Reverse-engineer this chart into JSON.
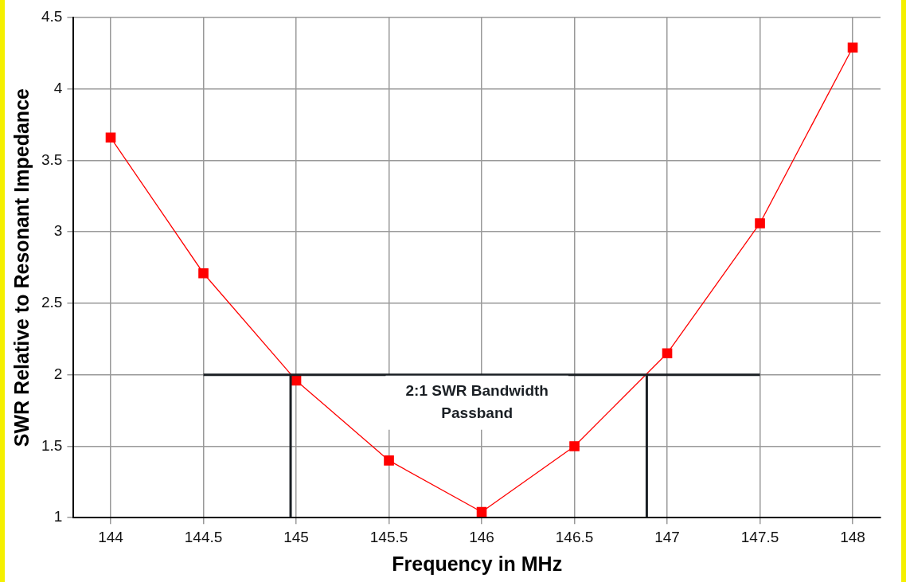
{
  "chart_data": {
    "type": "line",
    "xlabel": "Frequency in MHz",
    "ylabel": "SWR Relative to Resonant Impedance",
    "xlim": [
      143.8,
      148.15
    ],
    "xticks": [
      144,
      144.5,
      145,
      145.5,
      146,
      146.5,
      147,
      147.5,
      148
    ],
    "ylim": [
      1,
      4.5
    ],
    "yticks": [
      1,
      1.5,
      2,
      2.5,
      3,
      3.5,
      4,
      4.5
    ],
    "grid": true,
    "legend": false,
    "marker": "square",
    "line_style": "solid",
    "annotations": [
      "2:1 SWR Bandwidth\nPassband"
    ],
    "series": [
      {
        "color": "#ff0000",
        "x": [
          144,
          144.5,
          145,
          145.5,
          146,
          146.5,
          147,
          147.5,
          148
        ],
        "values": [
          3.66,
          2.71,
          1.96,
          1.4,
          1.04,
          1.5,
          2.15,
          3.06,
          4.29
        ]
      },
      {
        "color": "#1a1f24",
        "marker": "none",
        "x": [
          144.5,
          147.5
        ],
        "values": [
          2,
          2
        ]
      },
      {
        "color": "#1a1f24",
        "marker": "none",
        "x": [
          144.97,
          144.97
        ],
        "values": [
          1,
          2
        ]
      },
      {
        "color": "#1a1f24",
        "marker": "none",
        "x": [
          146.89,
          146.89
        ],
        "values": [
          1,
          2
        ]
      }
    ]
  }
}
